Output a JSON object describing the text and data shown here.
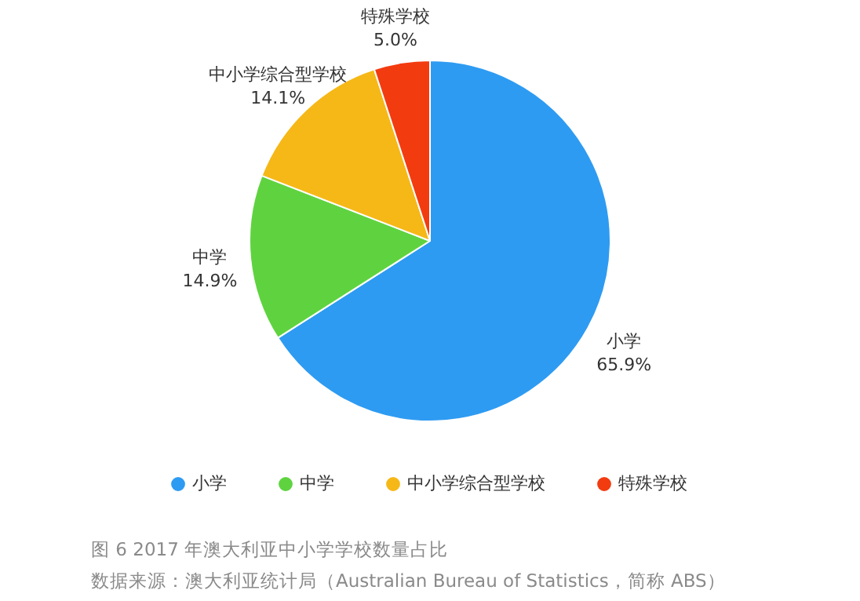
{
  "chart_data": {
    "type": "pie",
    "categories": [
      "小学",
      "中学",
      "中小学综合型学校",
      "特殊学校"
    ],
    "values": [
      65.9,
      14.9,
      14.1,
      5.0
    ],
    "value_labels": [
      "65.9%",
      "14.9%",
      "14.1%",
      "5.0%"
    ],
    "colors": [
      "#2e9bf2",
      "#5fd33f",
      "#f6b817",
      "#f33b10"
    ],
    "legend": "bottom",
    "annotations": [
      "图 6 2017 年澳大利亚中小学学校数量占比",
      "数据来源：澳大利亚统计局（Australian Bureau of Statistics，简称 ABS）"
    ]
  }
}
